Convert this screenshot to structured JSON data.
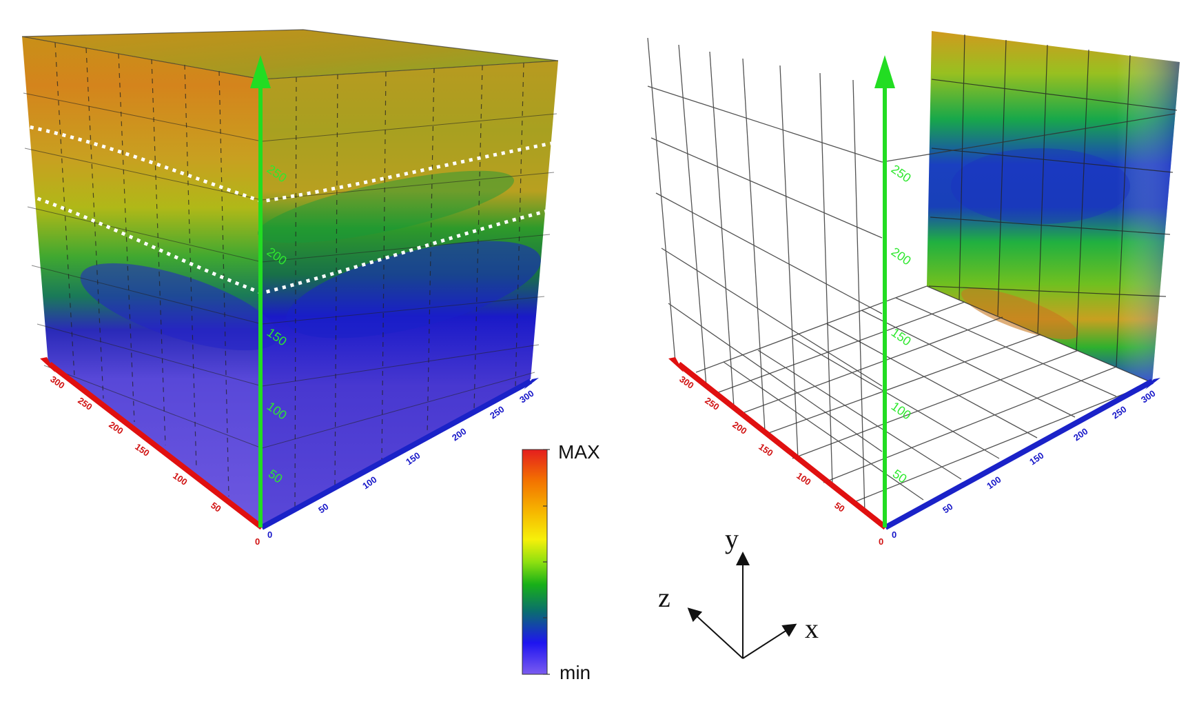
{
  "colorbar": {
    "max_label": "MAX",
    "min_label": "min",
    "stops": [
      "#7b5cf0",
      "#1e14f0",
      "#0a6e6e",
      "#18b018",
      "#8fe010",
      "#f6f00a",
      "#f6b800",
      "#f37300",
      "#e41e1e"
    ]
  },
  "colors": {
    "z_axis": "#e01010",
    "x_axis": "#1a22c8",
    "y_axis": "#22dd22",
    "grid": "#333333",
    "dashed_boundary": "#ffffff"
  },
  "left_view": {
    "y_ticks": [
      "50",
      "100",
      "150",
      "200",
      "250"
    ],
    "z_ticks": [
      "0",
      "50",
      "100",
      "150",
      "200",
      "250",
      "300"
    ],
    "x_ticks": [
      "0",
      "50",
      "100",
      "150",
      "200",
      "250",
      "300"
    ]
  },
  "right_view": {
    "y_ticks": [
      "50",
      "100",
      "150",
      "200",
      "250"
    ],
    "z_ticks": [
      "0",
      "50",
      "100",
      "150",
      "200",
      "250",
      "300"
    ],
    "x_ticks": [
      "0",
      "50",
      "100",
      "150",
      "200",
      "250",
      "300"
    ]
  },
  "orientation": {
    "x": "x",
    "y": "y",
    "z": "z"
  }
}
